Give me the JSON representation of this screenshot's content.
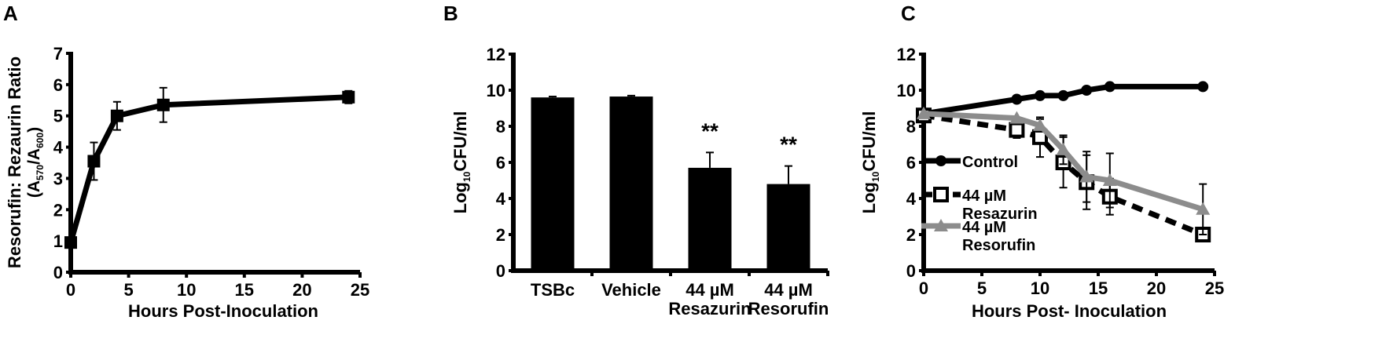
{
  "figure": {
    "panels": [
      {
        "label": "A"
      },
      {
        "label": "B"
      },
      {
        "label": "C"
      }
    ]
  },
  "chart_data": [
    {
      "panel": "A",
      "type": "line",
      "title": "",
      "xlabel": "Hours Post-Inoculation",
      "ylabel": "Resorufin: Rezaurin Ratio",
      "ylabel_line2": "(A570/A600)",
      "ylabel_line2_parts": {
        "a1": "A",
        "s1": "570",
        "mid": "/A",
        "s2": "600",
        "open": "(",
        "close": ")"
      },
      "xlim": [
        0,
        25
      ],
      "ylim": [
        0,
        7
      ],
      "xticks": [
        "0",
        "5",
        "10",
        "15",
        "20",
        "25"
      ],
      "yticks": [
        "0",
        "1",
        "2",
        "3",
        "4",
        "5",
        "6",
        "7"
      ],
      "grid": false,
      "series": [
        {
          "name": "Resorufin:Resazurin ratio",
          "color": "#000000",
          "marker": "square",
          "x": [
            0,
            2,
            4,
            8,
            24
          ],
          "y": [
            0.95,
            3.55,
            5.0,
            5.35,
            5.6
          ],
          "err": [
            0.05,
            0.6,
            0.45,
            0.55,
            0.2
          ]
        }
      ]
    },
    {
      "panel": "B",
      "type": "bar",
      "title": "",
      "xlabel": "",
      "ylabel": "Log10CFU/ml",
      "ylabel_parts": {
        "pre": "Log",
        "sub": "10",
        "post": "CFU/ml"
      },
      "ylim": [
        0,
        12
      ],
      "yticks": [
        "0",
        "2",
        "4",
        "6",
        "8",
        "10",
        "12"
      ],
      "categories": [
        "TSBc",
        "Vehicle",
        "44 µM Resazurin",
        "44 µM Resorufin"
      ],
      "category_lines": [
        [
          "TSBc"
        ],
        [
          "Vehicle"
        ],
        [
          "44 µM",
          "Resazurin"
        ],
        [
          "44 µM",
          "Resorufin"
        ]
      ],
      "values": [
        9.6,
        9.65,
        5.7,
        4.8
      ],
      "err": [
        0.05,
        0.05,
        0.85,
        1.0
      ],
      "annotations": [
        "",
        "",
        "**",
        "**"
      ],
      "color": "#000000",
      "grid": false
    },
    {
      "panel": "C",
      "type": "line",
      "title": "",
      "xlabel": "Hours Post- Inoculation",
      "ylabel": "Log10CFU/ml",
      "ylabel_parts": {
        "pre": "Log",
        "sub": "10",
        "post": "CFU/ml"
      },
      "xlim": [
        0,
        25
      ],
      "ylim": [
        0,
        12
      ],
      "xticks": [
        "0",
        "5",
        "10",
        "15",
        "20",
        "25"
      ],
      "yticks": [
        "0",
        "2",
        "4",
        "6",
        "8",
        "10",
        "12"
      ],
      "grid": false,
      "legend_position": "lower-left inside",
      "series": [
        {
          "name": "Control",
          "legend_lines": [
            "Control"
          ],
          "color": "#000000",
          "dash": "solid",
          "marker": "circle",
          "x": [
            0,
            8,
            10,
            12,
            14,
            16,
            24
          ],
          "y": [
            8.7,
            9.5,
            9.7,
            9.7,
            10.0,
            10.2,
            10.2
          ],
          "err": [
            0,
            0,
            0,
            0,
            0,
            0,
            0
          ]
        },
        {
          "name": "44 µM Resazurin",
          "legend_lines": [
            "44 µM",
            "Resazurin"
          ],
          "color": "#000000",
          "dash": "dashed",
          "marker": "open-square",
          "x": [
            0,
            8,
            10,
            12,
            14,
            16,
            24
          ],
          "y": [
            8.6,
            7.8,
            7.4,
            6.0,
            4.9,
            4.1,
            2.0
          ],
          "err": [
            0,
            0.45,
            1.1,
            1.4,
            1.5,
            1.0,
            0
          ]
        },
        {
          "name": "44 µM Resorufin",
          "legend_lines": [
            "44 µM",
            "Resorufin"
          ],
          "color": "#8c8c8c",
          "dash": "solid",
          "marker": "triangle",
          "x": [
            0,
            8,
            10,
            12,
            14,
            16,
            24
          ],
          "y": [
            8.7,
            8.45,
            8.05,
            6.7,
            5.2,
            5.0,
            3.4
          ],
          "err": [
            0,
            0,
            0.35,
            0.8,
            1.4,
            1.5,
            1.4
          ]
        }
      ]
    }
  ]
}
